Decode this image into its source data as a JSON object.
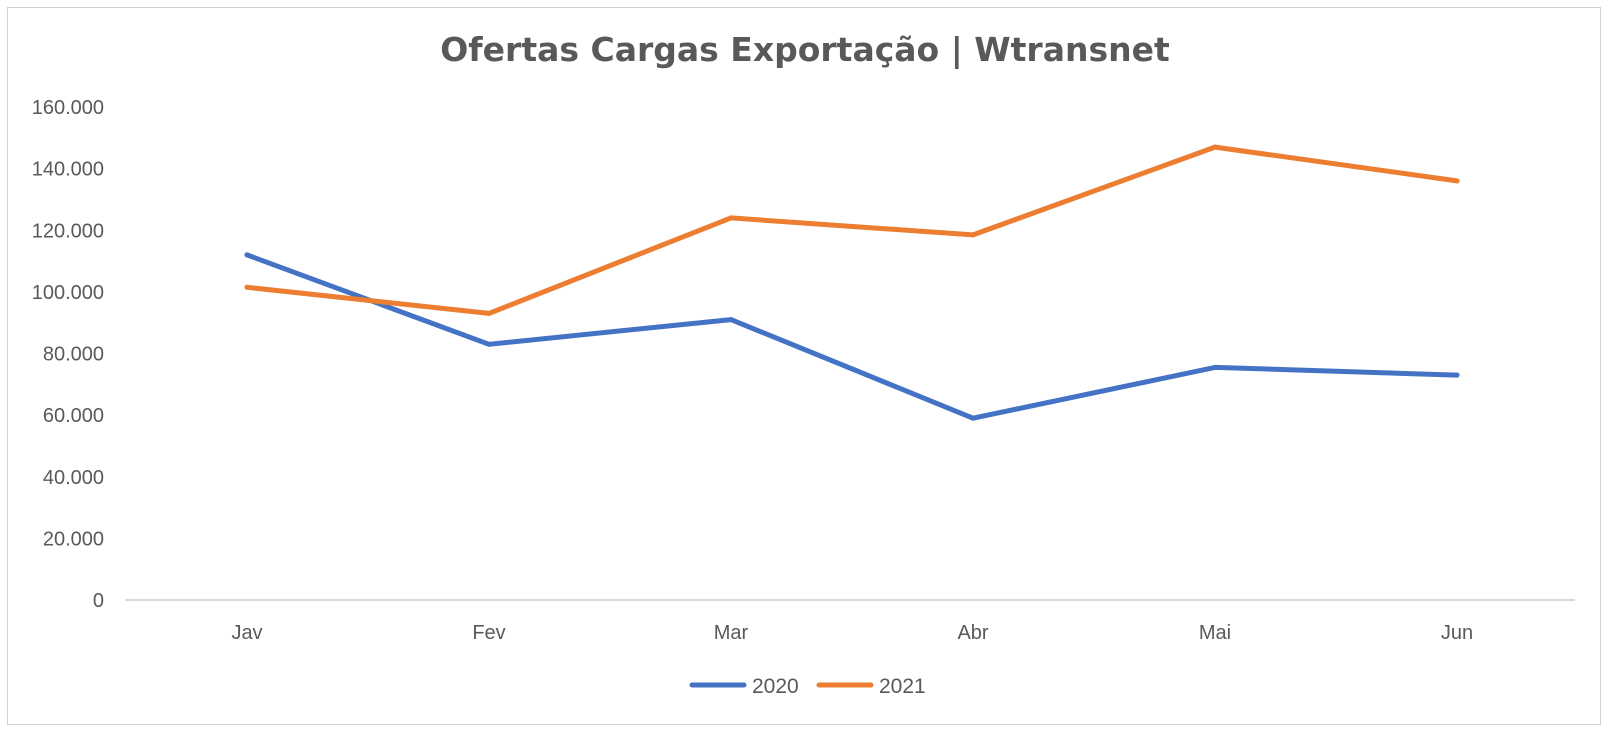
{
  "chart_data": {
    "type": "line",
    "title": "Ofertas Cargas Exportação | Wtransnet",
    "xlabel": "",
    "ylabel": "",
    "categories": [
      "Jav",
      "Fev",
      "Mar",
      "Abr",
      "Mai",
      "Jun"
    ],
    "ylim": [
      0,
      160000
    ],
    "yticks": [
      0,
      20000,
      40000,
      60000,
      80000,
      100000,
      120000,
      140000,
      160000
    ],
    "ytick_labels": [
      "0",
      "20.000",
      "40.000",
      "60.000",
      "80.000",
      "100.000",
      "120.000",
      "140.000",
      "160.000"
    ],
    "grid": false,
    "legend_position": "bottom",
    "series": [
      {
        "name": "2020",
        "color": "#4472c4",
        "values": [
          112000,
          83000,
          91000,
          59000,
          75500,
          73000
        ]
      },
      {
        "name": "2021",
        "color": "#ed7d31",
        "values": [
          101500,
          93000,
          124000,
          118500,
          147000,
          136000
        ]
      }
    ]
  }
}
